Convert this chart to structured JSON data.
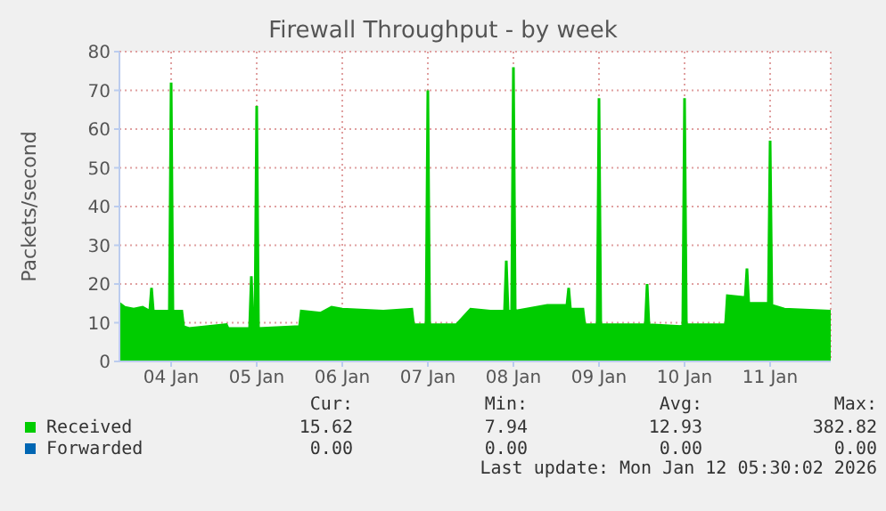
{
  "chart_data": {
    "type": "area",
    "title": "Firewall Throughput - by week",
    "ylabel": "Packets/second",
    "x": [
      "2026-01-03T21:30",
      "2026-01-03T23:00",
      "2026-01-04T01:30",
      "2026-01-04T04:00",
      "2026-01-04T06:00",
      "2026-01-04T06:30",
      "2026-01-04T07:00",
      "2026-01-04T11:30",
      "2026-01-04T12:00",
      "2026-01-04T12:30",
      "2026-01-04T15:00",
      "2026-01-04T15:30",
      "2026-01-04T17:00",
      "2026-01-05T03:30",
      "2026-01-05T04:00",
      "2026-01-05T10:00",
      "2026-01-05T10:30",
      "2026-01-05T11:00",
      "2026-01-05T11:30",
      "2026-01-05T12:00",
      "2026-01-05T12:30",
      "2026-01-06T00:00",
      "2026-01-06T00:30",
      "2026-01-06T06:00",
      "2026-01-06T09:00",
      "2026-01-06T12:00",
      "2026-01-06T23:30",
      "2026-01-07T07:30",
      "2026-01-07T08:00",
      "2026-01-07T11:30",
      "2026-01-07T12:00",
      "2026-01-07T12:30",
      "2026-01-07T20:00",
      "2026-01-08T00:00",
      "2026-01-08T05:30",
      "2026-01-08T09:30",
      "2026-01-08T10:00",
      "2026-01-08T10:30",
      "2026-01-08T11:30",
      "2026-01-08T12:00",
      "2026-01-08T12:30",
      "2026-01-08T21:30",
      "2026-01-09T03:00",
      "2026-01-09T03:30",
      "2026-01-09T04:00",
      "2026-01-09T07:30",
      "2026-01-09T08:00",
      "2026-01-09T11:30",
      "2026-01-09T12:00",
      "2026-01-09T12:30",
      "2026-01-10T01:00",
      "2026-01-10T01:30",
      "2026-01-10T02:00",
      "2026-01-10T11:30",
      "2026-01-10T12:00",
      "2026-01-10T12:30",
      "2026-01-10T23:30",
      "2026-01-11T00:00",
      "2026-01-11T05:00",
      "2026-01-11T05:30",
      "2026-01-11T06:00",
      "2026-01-11T11:30",
      "2026-01-11T12:00",
      "2026-01-11T12:30",
      "2026-01-11T16:00",
      "2026-01-12T05:00"
    ],
    "series": [
      {
        "name": "Received",
        "color": "#00cc00",
        "values": [
          15,
          14,
          13.5,
          14,
          13,
          19,
          13,
          13,
          72,
          13,
          13,
          9,
          8.5,
          9.5,
          8.5,
          8.5,
          22,
          8.5,
          8.5,
          66,
          8.5,
          9,
          13,
          12.5,
          14,
          13.5,
          13,
          13.5,
          9.5,
          9.5,
          70,
          9.5,
          9.5,
          13.5,
          13,
          13,
          26,
          13,
          13,
          76,
          13,
          14.5,
          14.5,
          19,
          13.5,
          13.5,
          9.5,
          9.5,
          68,
          9.5,
          9.5,
          20,
          9.5,
          9,
          68,
          9.5,
          9.5,
          17,
          16.5,
          24,
          15,
          15,
          57,
          14.5,
          13.5,
          13
        ]
      },
      {
        "name": "Forwarded",
        "color": "#0066b3",
        "values": [
          null,
          null,
          null,
          null,
          null,
          null,
          null,
          null,
          null,
          null,
          null,
          null,
          null,
          null,
          null,
          null,
          null,
          null,
          null,
          null,
          null,
          null,
          null,
          null,
          null,
          null,
          null,
          null,
          null,
          null,
          null,
          null,
          null,
          null,
          null,
          null,
          null,
          null,
          null,
          null,
          null,
          null,
          null,
          null,
          null,
          null,
          null,
          null,
          null,
          null,
          null,
          null,
          null,
          null,
          null,
          null,
          null,
          null,
          null,
          null,
          null,
          null,
          null,
          null,
          null,
          null
        ]
      }
    ],
    "xlim": [
      "2026-01-03T21:30",
      "2026-01-12T05:00"
    ],
    "xticks": [
      {
        "value": "2026-01-04T12:00",
        "label": "04 Jan"
      },
      {
        "value": "2026-01-05T12:00",
        "label": "05 Jan"
      },
      {
        "value": "2026-01-06T12:00",
        "label": "06 Jan"
      },
      {
        "value": "2026-01-07T12:00",
        "label": "07 Jan"
      },
      {
        "value": "2026-01-08T12:00",
        "label": "08 Jan"
      },
      {
        "value": "2026-01-09T12:00",
        "label": "09 Jan"
      },
      {
        "value": "2026-01-10T12:00",
        "label": "10 Jan"
      },
      {
        "value": "2026-01-11T12:00",
        "label": "11 Jan"
      }
    ],
    "ylim": [
      0,
      80
    ],
    "yticks": [
      0,
      10,
      20,
      30,
      40,
      50,
      60,
      70,
      80
    ],
    "grid": true,
    "legend": "bottom",
    "annotations": [
      "Cur:",
      "Min:",
      "Avg:",
      "Max:",
      "15.62",
      "7.94",
      "12.93",
      "382.82",
      "0.00",
      "0.00",
      "0.00",
      "0.00",
      "Last update: Mon Jan 12 05:30:02 2026"
    ]
  }
}
